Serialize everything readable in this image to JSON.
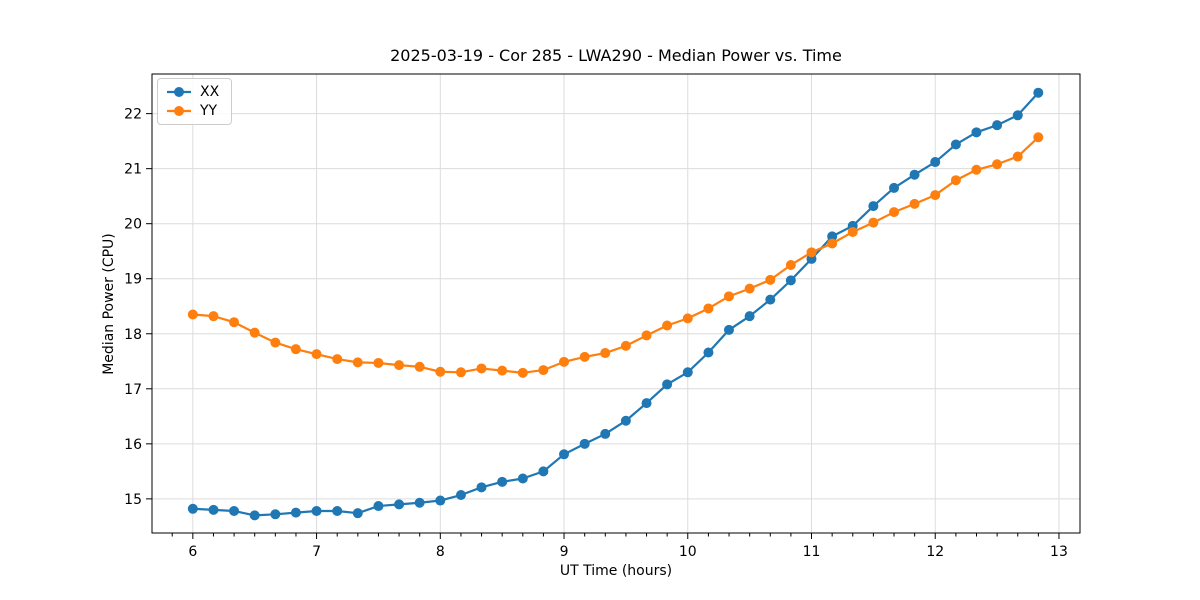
{
  "chart_data": {
    "type": "line",
    "title": "2025-03-19 - Cor 285 - LWA290 - Median Power vs. Time",
    "xlabel": "UT Time (hours)",
    "ylabel": "Median Power (CPU)",
    "xlim": [
      5.67,
      13.17
    ],
    "ylim": [
      14.38,
      22.72
    ],
    "x_ticks": [
      6,
      7,
      8,
      9,
      10,
      11,
      12,
      13
    ],
    "y_ticks": [
      15,
      16,
      17,
      18,
      19,
      20,
      21,
      22
    ],
    "x_minor_step": 0.16667,
    "grid": true,
    "grid_color": "#dcdcdc",
    "legend_position": "upper-left",
    "x": [
      6.0,
      6.167,
      6.333,
      6.5,
      6.667,
      6.833,
      7.0,
      7.167,
      7.333,
      7.5,
      7.667,
      7.833,
      8.0,
      8.167,
      8.333,
      8.5,
      8.667,
      8.833,
      9.0,
      9.167,
      9.333,
      9.5,
      9.667,
      9.833,
      10.0,
      10.167,
      10.333,
      10.5,
      10.667,
      10.833,
      11.0,
      11.167,
      11.333,
      11.5,
      11.667,
      11.833,
      12.0,
      12.167,
      12.333,
      12.5,
      12.667,
      12.833
    ],
    "series": [
      {
        "name": "XX",
        "color": "#1f77b4",
        "values": [
          14.82,
          14.8,
          14.78,
          14.7,
          14.72,
          14.75,
          14.78,
          14.78,
          14.74,
          14.87,
          14.9,
          14.93,
          14.97,
          15.07,
          15.21,
          15.31,
          15.37,
          15.5,
          15.81,
          16.0,
          16.18,
          16.42,
          16.74,
          17.08,
          17.3,
          17.66,
          18.07,
          18.32,
          18.62,
          18.97,
          19.36,
          19.77,
          19.96,
          20.32,
          20.65,
          20.89,
          21.12,
          21.44,
          21.66,
          21.79,
          21.97,
          22.38
        ]
      },
      {
        "name": "YY",
        "color": "#ff7f0e",
        "values": [
          18.35,
          18.32,
          18.21,
          18.02,
          17.84,
          17.72,
          17.63,
          17.54,
          17.48,
          17.47,
          17.43,
          17.4,
          17.31,
          17.3,
          17.37,
          17.33,
          17.29,
          17.34,
          17.49,
          17.58,
          17.65,
          17.78,
          17.97,
          18.15,
          18.28,
          18.46,
          18.68,
          18.82,
          18.98,
          19.25,
          19.48,
          19.64,
          19.85,
          20.02,
          20.21,
          20.36,
          20.52,
          20.79,
          20.98,
          21.08,
          21.22,
          21.57
        ]
      }
    ]
  }
}
